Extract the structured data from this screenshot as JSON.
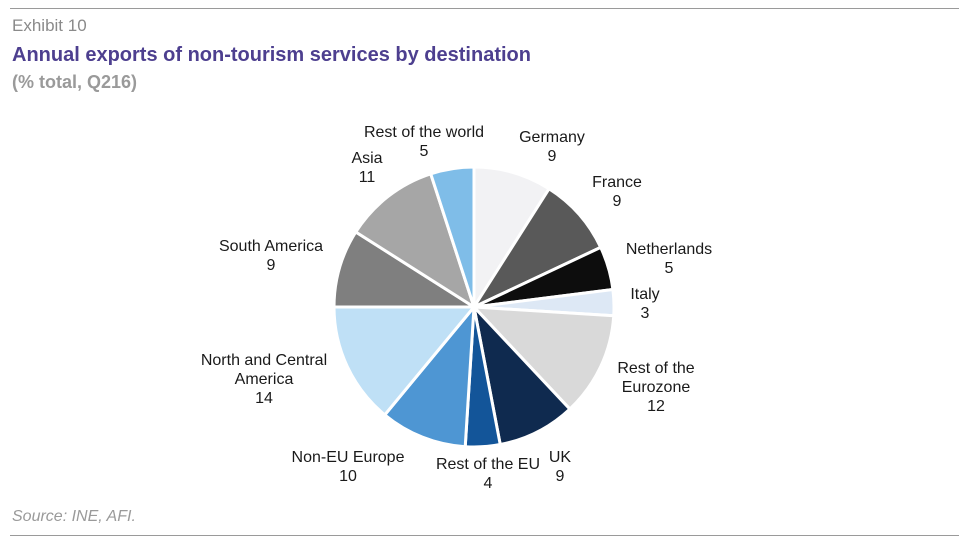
{
  "header": {
    "exhibit": "Exhibit 10",
    "title": "Annual exports of non-tourism services by destination",
    "subtitle": "(% total, Q216)"
  },
  "footer": {
    "source": "Source: INE, AFI."
  },
  "chart_data": {
    "type": "pie",
    "title": "Annual exports of non-tourism services by destination",
    "subtitle": "(% total, Q216)",
    "unit": "% total",
    "slices": [
      {
        "label": "Germany",
        "value": 9,
        "color": "#f2f2f4"
      },
      {
        "label": "France",
        "value": 9,
        "color": "#595959"
      },
      {
        "label": "Netherlands",
        "value": 5,
        "color": "#0d0d0d"
      },
      {
        "label": "Italy",
        "value": 3,
        "color": "#dde8f5"
      },
      {
        "label": "Rest of the Eurozone",
        "value": 12,
        "color": "#d9d9d9"
      },
      {
        "label": "UK",
        "value": 9,
        "color": "#0f2a4f"
      },
      {
        "label": "Rest of the EU",
        "value": 4,
        "color": "#135599"
      },
      {
        "label": "Non-EU Europe",
        "value": 10,
        "color": "#4e96d3"
      },
      {
        "label": "North and Central America",
        "value": 14,
        "color": "#bfe0f6"
      },
      {
        "label": "South America",
        "value": 9,
        "color": "#7f7f7f"
      },
      {
        "label": "Asia",
        "value": 11,
        "color": "#a6a6a6"
      },
      {
        "label": "Rest of the world",
        "value": 5,
        "color": "#7fbde8"
      }
    ]
  }
}
